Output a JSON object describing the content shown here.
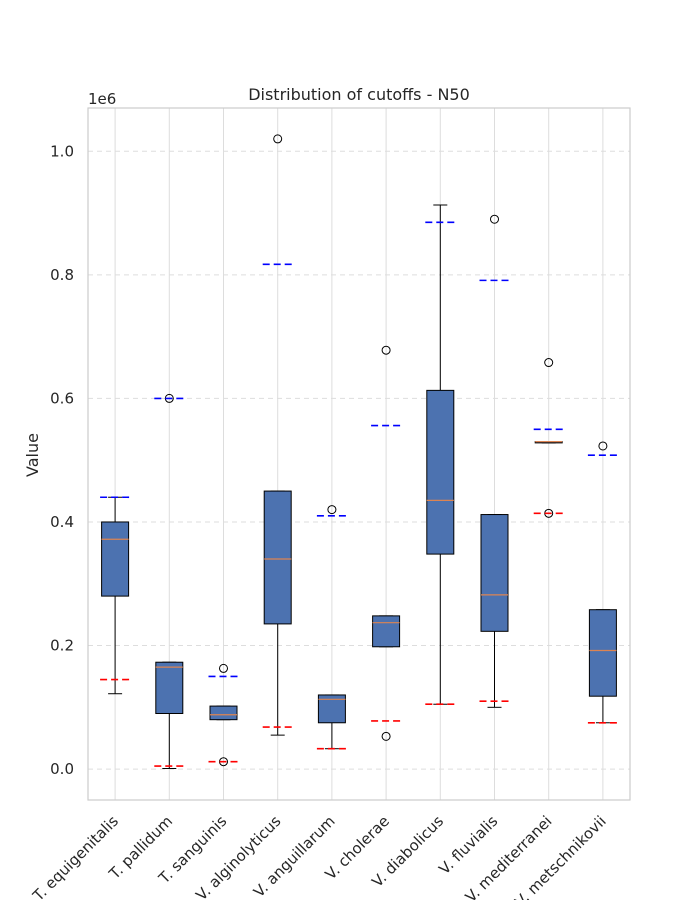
{
  "chart_data": {
    "type": "box",
    "title": "Distribution of cutoffs - N50",
    "xlabel": "",
    "ylabel": "Value",
    "y_offset_label": "1e6",
    "ylim": [
      -50000,
      1070000
    ],
    "yticks": [
      0,
      200000,
      400000,
      600000,
      800000,
      1000000
    ],
    "ytick_labels": [
      "0.0",
      "0.2",
      "0.4",
      "0.6",
      "0.8",
      "1.0"
    ],
    "grid": true,
    "categories": [
      "T. equigenitalis",
      "T. pallidum",
      "T. sanguinis",
      "V. alginolyticus",
      "V. anguillarum",
      "V. cholerae",
      "V. diabolicus",
      "V. fluvialis",
      "V. mediterranei",
      "V. metschnikovii"
    ],
    "boxes": [
      {
        "whislo": 122000,
        "q1": 280000,
        "med": 372000,
        "q3": 400000,
        "whishi": 440000,
        "fliers": [],
        "upper_line": 440000,
        "lower_line": 145000
      },
      {
        "whislo": 1000,
        "q1": 90000,
        "med": 165000,
        "q3": 173000,
        "whishi": 173000,
        "fliers": [
          600000
        ],
        "upper_line": 600000,
        "lower_line": 5000
      },
      {
        "whislo": 80000,
        "q1": 80000,
        "med": 88000,
        "q3": 102000,
        "whishi": 102000,
        "fliers": [
          163000,
          12000
        ],
        "upper_line": 150000,
        "lower_line": 12000
      },
      {
        "whislo": 55000,
        "q1": 235000,
        "med": 340000,
        "q3": 450000,
        "whishi": 450000,
        "fliers": [
          1020000
        ],
        "upper_line": 817000,
        "lower_line": 68000
      },
      {
        "whislo": 33000,
        "q1": 75000,
        "med": 113000,
        "q3": 120000,
        "whishi": 120000,
        "fliers": [
          420000
        ],
        "upper_line": 410000,
        "lower_line": 33000
      },
      {
        "whislo": 198000,
        "q1": 198000,
        "med": 237000,
        "q3": 248000,
        "whishi": 248000,
        "fliers": [
          678000,
          53000
        ],
        "upper_line": 556000,
        "lower_line": 78000
      },
      {
        "whislo": 105000,
        "q1": 348000,
        "med": 435000,
        "q3": 613000,
        "whishi": 913000,
        "fliers": [],
        "upper_line": 885000,
        "lower_line": 105000
      },
      {
        "whislo": 100000,
        "q1": 223000,
        "med": 282000,
        "q3": 412000,
        "whishi": 412000,
        "fliers": [
          890000
        ],
        "upper_line": 791000,
        "lower_line": 110000
      },
      {
        "whislo": 528000,
        "q1": 528000,
        "med": 530000,
        "q3": 530000,
        "whishi": 530000,
        "fliers": [
          658000,
          414000
        ],
        "upper_line": 550000,
        "lower_line": 414000
      },
      {
        "whislo": 75000,
        "q1": 118000,
        "med": 192000,
        "q3": 258000,
        "whishi": 258000,
        "fliers": [
          523000
        ],
        "upper_line": 508000,
        "lower_line": 75000
      }
    ],
    "colors": {
      "box_fill": "#4c72b0",
      "median": "#dd8452",
      "upper_line": "#0000ff",
      "lower_line": "#ff0000",
      "grid": "#dddddd",
      "frame": "#cccccc"
    }
  }
}
